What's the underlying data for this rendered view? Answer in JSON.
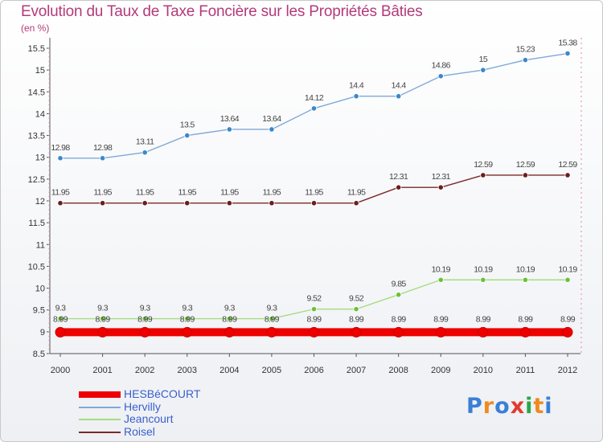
{
  "title": "Evolution du Taux de Taxe Foncière sur les Propriétés Bâties",
  "unit": "(en %)",
  "logo": {
    "text": "Proxiti",
    "colors": [
      "#3a7fd5",
      "#f08a1c",
      "#3a7fd5",
      "#e23b2e",
      "#2aa64a",
      "#f08a1c",
      "#3a7fd5"
    ]
  },
  "chart_data": {
    "type": "line",
    "title": "Evolution du Taux de Taxe Foncière sur les Propriétés Bâties",
    "ylabel": "(en %)",
    "xlabel": "",
    "x": [
      "2000",
      "2001",
      "2002",
      "2003",
      "2004",
      "2005",
      "2006",
      "2007",
      "2008",
      "2009",
      "2010",
      "2011",
      "2012"
    ],
    "ylim": [
      8.5,
      15.5
    ],
    "yticks": [
      "8.5",
      "9",
      "9.5",
      "10",
      "10.5",
      "11",
      "11.5",
      "12",
      "12.5",
      "13",
      "13.5",
      "14",
      "14.5",
      "15",
      "15.5"
    ],
    "grid": false,
    "legend_position": "bottom-left",
    "series": [
      {
        "name": "HESBéCOURT",
        "color": "#ee0000",
        "values": [
          8.99,
          8.99,
          8.99,
          8.99,
          8.99,
          8.99,
          8.99,
          8.99,
          8.99,
          8.99,
          8.99,
          8.99,
          8.99
        ],
        "labels": [
          "8.99",
          "8.99",
          "8.99",
          "8.99",
          "8.99",
          "8.99",
          "8.99",
          "8.99",
          "8.99",
          "8.99",
          "8.99",
          "8.99",
          "8.99"
        ]
      },
      {
        "name": "Hervilly",
        "color": "#7fa9d8",
        "marker": "#3b88c9",
        "values": [
          12.98,
          12.98,
          13.11,
          13.5,
          13.64,
          13.64,
          14.12,
          14.4,
          14.4,
          14.86,
          15,
          15.23,
          15.38
        ],
        "labels": [
          "12.98",
          "12.98",
          "13.11",
          "13.5",
          "13.64",
          "13.64",
          "14.12",
          "14.4",
          "14.4",
          "14.86",
          "15",
          "15.23",
          "15.38"
        ]
      },
      {
        "name": "Jeancourt",
        "color": "#a6dc82",
        "marker": "#6cc03b",
        "values": [
          9.3,
          9.3,
          9.3,
          9.3,
          9.3,
          9.3,
          9.52,
          9.52,
          9.85,
          10.19,
          10.19,
          10.19,
          10.19
        ],
        "labels": [
          "9.3",
          "9.3",
          "9.3",
          "9.3",
          "9.3",
          "9.3",
          "9.52",
          "9.52",
          "9.85",
          "10.19",
          "10.19",
          "10.19",
          "10.19"
        ]
      },
      {
        "name": "Roisel",
        "color": "#7a2a2a",
        "marker": "#6b1e1e",
        "values": [
          11.95,
          11.95,
          11.95,
          11.95,
          11.95,
          11.95,
          11.95,
          11.95,
          12.31,
          12.31,
          12.59,
          12.59,
          12.59
        ],
        "labels": [
          "11.95",
          "11.95",
          "11.95",
          "11.95",
          "11.95",
          "11.95",
          "11.95",
          "11.95",
          "12.31",
          "12.31",
          "12.59",
          "12.59",
          "12.59"
        ]
      }
    ]
  }
}
